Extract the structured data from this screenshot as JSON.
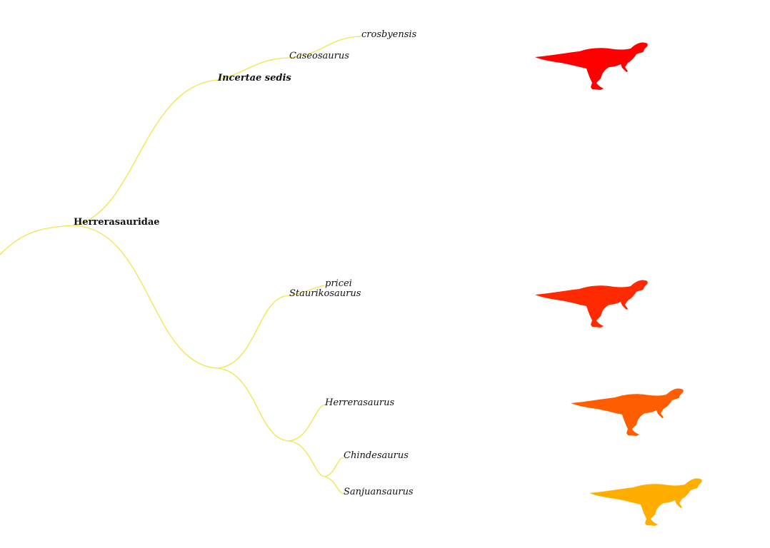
{
  "tree": {
    "branch_color": "#f2e44a",
    "nodes": {
      "root": "Herrerasauridae",
      "incertae": "Incertae sedis",
      "caseosaurus": "Caseosaurus",
      "crosbyensis": "crosbyensis",
      "staurikosaurus": "Staurikosaurus",
      "pricei": "pricei",
      "herrerasaurus": "Herrerasaurus",
      "chindesaurus": "Chindesaurus",
      "sanjuansaurus": "Sanjuansaurus"
    }
  },
  "silhouettes": [
    {
      "taxon": "Caseosaurus",
      "icon": "theropod-silhouette-icon",
      "color": "#ff0000"
    },
    {
      "taxon": "Staurikosaurus",
      "icon": "theropod-silhouette-icon",
      "color": "#ff2a00"
    },
    {
      "taxon": "Herrerasaurus",
      "icon": "theropod-silhouette-icon",
      "color": "#ff5e00"
    },
    {
      "taxon": "Sanjuansaurus",
      "icon": "theropod-silhouette-icon",
      "color": "#ffae00"
    }
  ]
}
